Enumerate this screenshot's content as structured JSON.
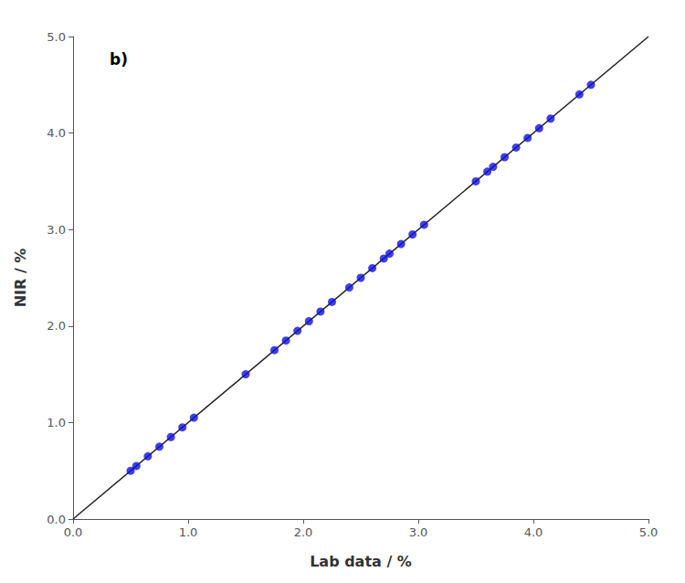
{
  "chart_data": {
    "type": "scatter",
    "xlabel": "Lab data / %",
    "ylabel": "NIR / %",
    "annotations": [
      "b)"
    ],
    "xlim": [
      0.0,
      5.0
    ],
    "ylim": [
      0.0,
      5.0
    ],
    "xticks": [
      {
        "value": 0,
        "label": "0.0"
      },
      {
        "value": 1,
        "label": "1.0"
      },
      {
        "value": 2,
        "label": "2.0"
      },
      {
        "value": 3,
        "label": "3.0"
      },
      {
        "value": 4,
        "label": "4.0"
      },
      {
        "value": 5,
        "label": "5.0"
      }
    ],
    "yticks": [
      {
        "value": 0,
        "label": "0.0"
      },
      {
        "value": 1,
        "label": "1.0"
      },
      {
        "value": 2,
        "label": "2.0"
      },
      {
        "value": 3,
        "label": "3.0"
      },
      {
        "value": 4,
        "label": "4.0"
      },
      {
        "value": 5,
        "label": "5.0"
      }
    ],
    "grid": false,
    "series": [
      {
        "type": "line",
        "color": "#222222",
        "x": [
          0.0,
          5.0
        ],
        "values": [
          0.0,
          5.0
        ]
      },
      {
        "type": "scatter",
        "color": "#1010DD",
        "x": [
          0.5,
          0.55,
          0.65,
          0.75,
          0.85,
          0.95,
          1.05,
          1.5,
          1.75,
          1.85,
          1.95,
          2.05,
          2.15,
          2.25,
          2.4,
          2.5,
          2.6,
          2.7,
          2.75,
          2.85,
          2.95,
          3.05,
          3.5,
          3.6,
          3.65,
          3.75,
          3.85,
          3.95,
          4.05,
          4.15,
          4.4,
          4.5
        ],
        "values": [
          0.5,
          0.55,
          0.65,
          0.75,
          0.85,
          0.95,
          1.05,
          1.5,
          1.75,
          1.85,
          1.95,
          2.05,
          2.15,
          2.25,
          2.4,
          2.5,
          2.6,
          2.7,
          2.75,
          2.85,
          2.95,
          3.05,
          3.5,
          3.6,
          3.65,
          3.75,
          3.85,
          3.95,
          4.05,
          4.15,
          4.4,
          4.5
        ]
      }
    ]
  }
}
